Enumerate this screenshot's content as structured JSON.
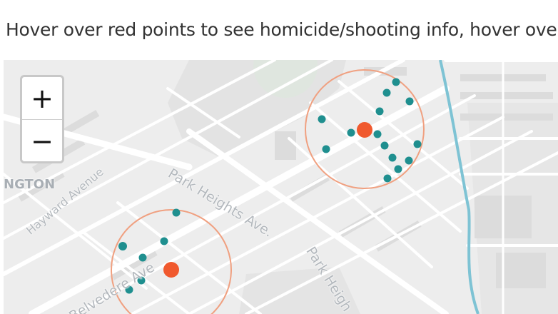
{
  "caption": "Hover over red points to see homicide/shooting info, hover over",
  "zoom": {
    "in_label": "+",
    "out_label": "−"
  },
  "street_labels": {
    "park_heights_1": "Park Heights Ave.",
    "park_heights_2": "Park Heigh",
    "belvedere": "Belvedere Ave",
    "hayward": "Hayward Avenue",
    "neighborhood": "NGTON"
  },
  "colors": {
    "homicide_point": "#f0592e",
    "incident_point": "#1f8f8f",
    "radius_ring": "#f0a080",
    "river": "#7ec3d4"
  }
}
